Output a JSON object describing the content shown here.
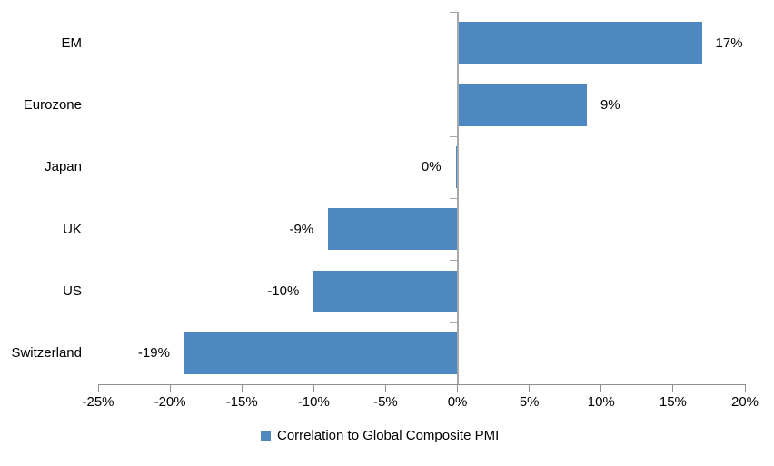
{
  "chart_data": {
    "type": "bar",
    "orientation": "horizontal",
    "title": "",
    "categories": [
      "EM",
      "Eurozone",
      "Japan",
      "UK",
      "US",
      "Switzerland"
    ],
    "values": [
      17,
      9,
      0,
      -9,
      -10,
      -19
    ],
    "value_labels": [
      "17%",
      "9%",
      "0%",
      "-9%",
      "-10%",
      "-19%"
    ],
    "series_name": "Correlation to Global Composite PMI",
    "legend": "Correlation to Global Composite PMI",
    "legend_position": "bottom",
    "xlim": [
      -25,
      20
    ],
    "xticks": [
      -25,
      -20,
      -15,
      -10,
      -5,
      0,
      5,
      10,
      15,
      20
    ],
    "xtick_labels": [
      "-25%",
      "-20%",
      "-15%",
      "-10%",
      "-5%",
      "0%",
      "5%",
      "10%",
      "15%",
      "20%"
    ],
    "grid": "none",
    "data_label_position": "outside-end"
  },
  "colors": {
    "bar": "#4E88C0",
    "value_axis": "#8F8F8F",
    "category_axis": "#A9A9A9",
    "text": "#000000",
    "background": "#FFFFFF"
  }
}
